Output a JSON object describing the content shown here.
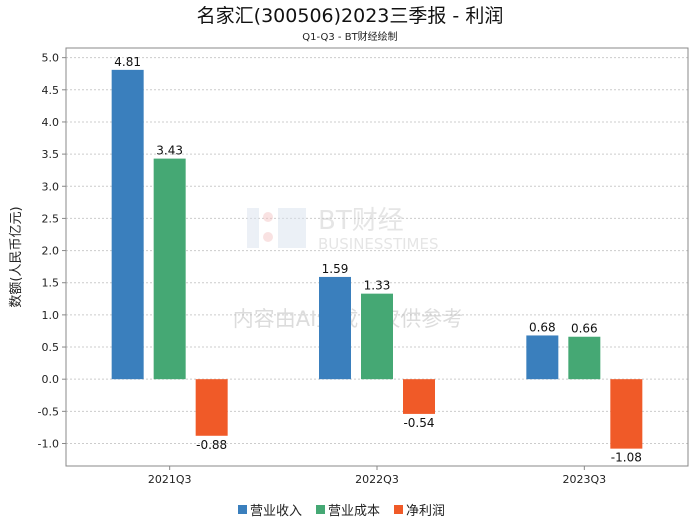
{
  "chart_data": {
    "type": "bar",
    "title": "名家汇(300506)2023三季报 - 利润",
    "subtitle": "Q1-Q3 - BT财经绘制",
    "xlabel": "",
    "ylabel": "数额(人民币亿元)",
    "ylim": [
      -1.35,
      5.15
    ],
    "yticks": [
      "5.0",
      "4.5",
      "4.0",
      "3.5",
      "3.0",
      "2.5",
      "2.0",
      "1.5",
      "1.0",
      "0.5",
      "0.0",
      "-0.5",
      "-1.0"
    ],
    "ytick_values": [
      5.0,
      4.5,
      4.0,
      3.5,
      3.0,
      2.5,
      2.0,
      1.5,
      1.0,
      0.5,
      0.0,
      -0.5,
      -1.0
    ],
    "categories": [
      "2021Q3",
      "2022Q3",
      "2023Q3"
    ],
    "series": [
      {
        "name": "营业收入",
        "color": "#3a7fbd",
        "values": [
          4.81,
          1.59,
          0.68
        ],
        "labels": [
          "4.81",
          "1.59",
          "0.68"
        ]
      },
      {
        "name": "营业成本",
        "color": "#45a874",
        "values": [
          3.43,
          1.33,
          0.66
        ],
        "labels": [
          "3.43",
          "1.33",
          "0.66"
        ]
      },
      {
        "name": "净利润",
        "color": "#f05a28",
        "values": [
          -0.88,
          -0.54,
          -1.08
        ],
        "labels": [
          "-0.88",
          "-0.54",
          "-1.08"
        ]
      }
    ],
    "grid": true,
    "legend": "bottom-center"
  },
  "watermark": {
    "logo": "BT财经",
    "logo_sub": "BUSINESSTIMES",
    "notice": "内容由AI生成，仅供参考"
  }
}
